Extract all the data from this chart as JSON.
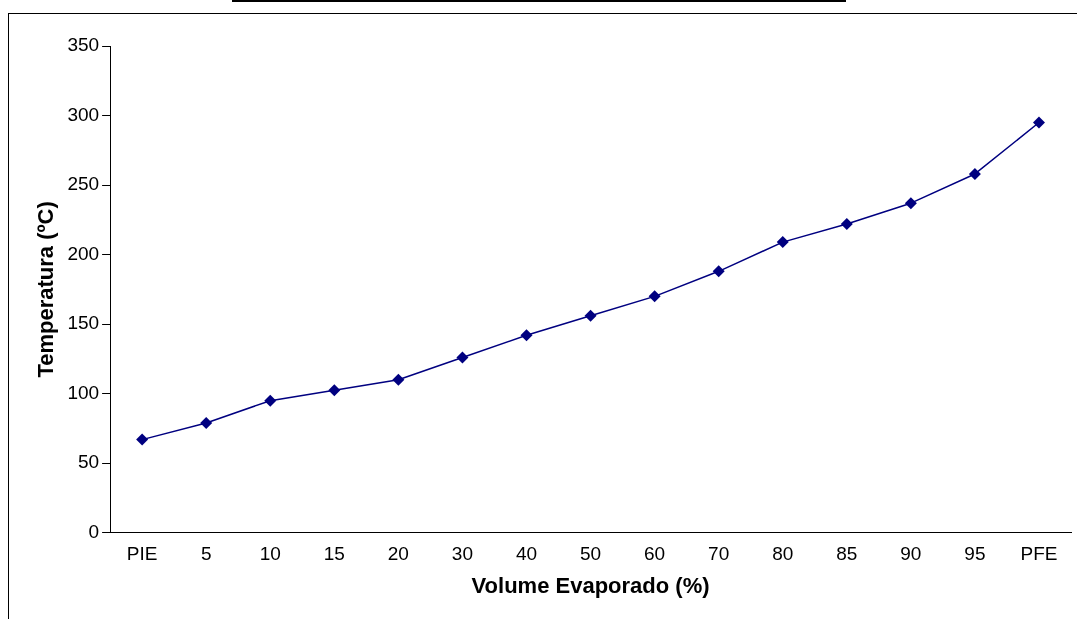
{
  "chart_data": {
    "type": "line",
    "xlabel": "Volume Evaporado (%)",
    "ylabel": "Temperatura (ºC)",
    "categories": [
      "PIE",
      "5",
      "10",
      "15",
      "20",
      "30",
      "40",
      "50",
      "60",
      "70",
      "80",
      "85",
      "90",
      "95",
      "PFE"
    ],
    "series": [
      {
        "color": "#000080",
        "values": [
          67,
          79,
          95,
          102.5,
          110,
          126,
          142,
          156,
          170,
          188,
          209,
          222,
          237,
          258,
          295
        ]
      }
    ],
    "ylim": [
      0,
      350
    ],
    "yticks": [
      0,
      50,
      100,
      150,
      200,
      250,
      300,
      350
    ],
    "grid": false,
    "legend": false,
    "marker": "diamond",
    "line_style": "solid"
  }
}
